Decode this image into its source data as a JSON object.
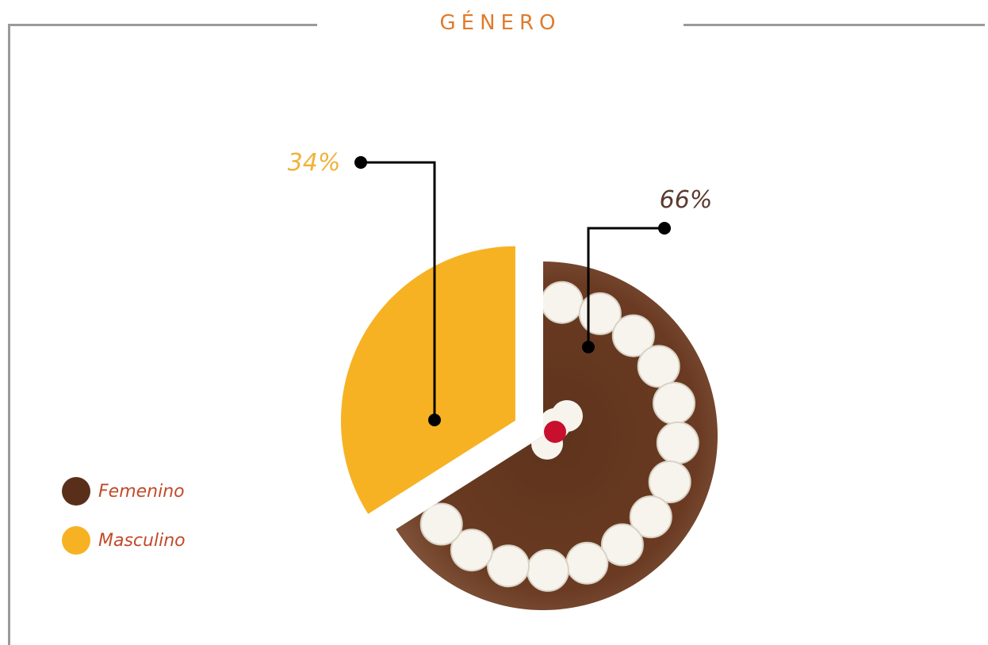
{
  "chart_data": {
    "type": "pie",
    "title": "GÉNERO",
    "series": [
      {
        "name": "Femenino",
        "value": 66,
        "label": "66%",
        "color": "#5a2f1a"
      },
      {
        "name": "Masculino",
        "value": 34,
        "label": "34%",
        "color": "#f7b223"
      }
    ],
    "legend_position": "bottom-left",
    "exploded_slice": "Masculino",
    "slice_texture": "chocolate cake with whipped cream"
  },
  "colors": {
    "title": "#e07b2c",
    "frame": "#9a9a9a",
    "leader": "#000000",
    "legend_text": "#c14a2a",
    "label_femenino": "#5a3a2e",
    "label_masculino": "#f0b23a"
  }
}
